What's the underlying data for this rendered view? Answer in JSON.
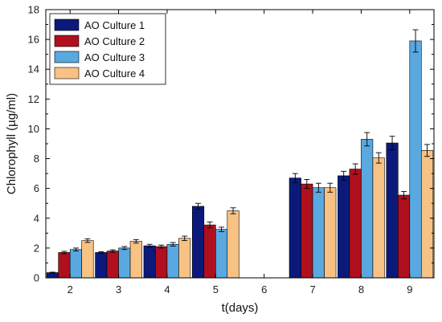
{
  "chart_data": {
    "type": "bar",
    "title": "",
    "xlabel": "t(days)",
    "ylabel": "Chlorophyll (µg/ml)",
    "categories": [
      "2",
      "3",
      "4",
      "5",
      "6",
      "7",
      "8",
      "9"
    ],
    "ylim": [
      0,
      18
    ],
    "yticks": [
      "0",
      "2",
      "4",
      "6",
      "8",
      "10",
      "12",
      "14",
      "16",
      "18"
    ],
    "legend_position": "top-left",
    "grid": false,
    "series": [
      {
        "name": "AO Culture 1",
        "color": "#0b1a7a",
        "values": [
          0.35,
          1.7,
          2.15,
          4.8,
          null,
          6.7,
          6.85,
          9.05
        ],
        "errors": [
          0.03,
          0.05,
          0.1,
          0.2,
          null,
          0.3,
          0.3,
          0.45
        ]
      },
      {
        "name": "AO Culture 2",
        "color": "#b0101e",
        "values": [
          1.7,
          1.8,
          2.1,
          3.55,
          null,
          6.3,
          7.3,
          5.55
        ],
        "errors": [
          0.08,
          0.08,
          0.1,
          0.2,
          null,
          0.3,
          0.35,
          0.25
        ]
      },
      {
        "name": "AO Culture 3",
        "color": "#5aa8e0",
        "values": [
          1.9,
          2.0,
          2.25,
          3.25,
          null,
          6.05,
          9.3,
          15.9
        ],
        "errors": [
          0.1,
          0.1,
          0.12,
          0.15,
          null,
          0.3,
          0.45,
          0.75
        ]
      },
      {
        "name": "AO Culture 4",
        "color": "#f8c284",
        "values": [
          2.5,
          2.45,
          2.65,
          4.5,
          null,
          6.05,
          8.05,
          8.55
        ],
        "errors": [
          0.12,
          0.12,
          0.15,
          0.2,
          null,
          0.3,
          0.35,
          0.4
        ]
      }
    ]
  }
}
